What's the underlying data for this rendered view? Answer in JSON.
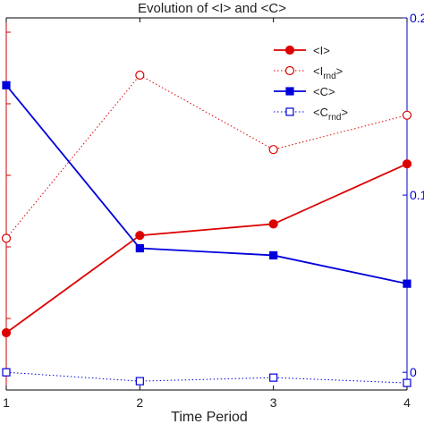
{
  "chart_data": {
    "type": "line",
    "title": "Evolution of <I> and <C>",
    "xlabel": "Time Period",
    "x": [
      1,
      2,
      3,
      4
    ],
    "xticks": [
      "1",
      "2",
      "3",
      "4"
    ],
    "xlim": [
      1,
      4
    ],
    "y_right_ylim": [
      -0.01,
      0.2
    ],
    "y_right_ticks": [
      {
        "value": 0.0,
        "label": "0"
      },
      {
        "value": 0.1,
        "label": "0.1"
      },
      {
        "value": 0.2,
        "label": "0.2"
      }
    ],
    "left_axis_color": "#cc0000",
    "right_axis_color": "#0000cc",
    "series": [
      {
        "name": "<I>",
        "axis": "left",
        "color": "#dd0000",
        "style": "solid",
        "marker": "filled-circle",
        "values": [
          0.2,
          0.54,
          0.58,
          0.79
        ]
      },
      {
        "name": "<I_rnd>",
        "axis": "left",
        "color": "#dd0000",
        "style": "dotted",
        "marker": "open-circle",
        "values": [
          0.53,
          1.1,
          0.84,
          0.96
        ]
      },
      {
        "name": "<C>",
        "axis": "right",
        "color": "#0000dd",
        "style": "solid",
        "marker": "filled-square",
        "values": [
          0.162,
          0.07,
          0.066,
          0.05
        ]
      },
      {
        "name": "<C_rnd>",
        "axis": "right",
        "color": "#0000dd",
        "style": "dotted",
        "marker": "open-square",
        "values": [
          0.0,
          -0.005,
          -0.003,
          -0.006
        ]
      }
    ],
    "legend": {
      "position": "top-right",
      "entries": [
        {
          "main": "<I",
          "sub": "",
          "close": ">"
        },
        {
          "main": "<I",
          "sub": "rnd",
          "close": ">"
        },
        {
          "main": "<C",
          "sub": "",
          "close": ">"
        },
        {
          "main": "<C",
          "sub": "rnd",
          "close": ">"
        }
      ]
    },
    "grid": false
  }
}
